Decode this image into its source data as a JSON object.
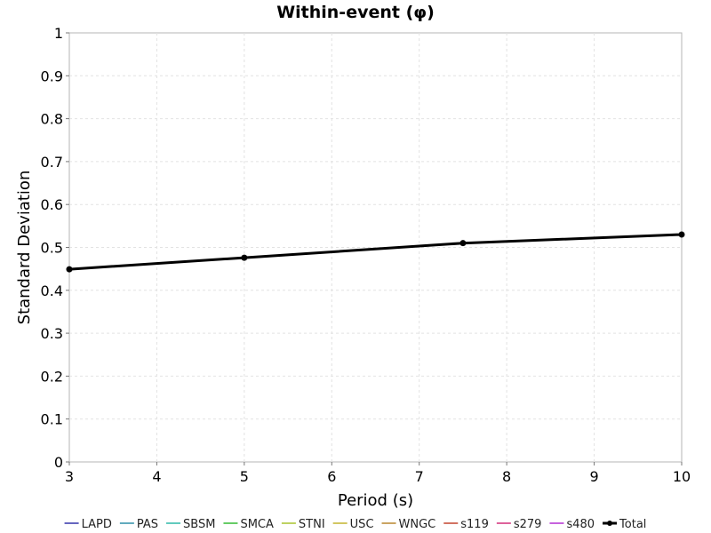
{
  "chart_data": {
    "type": "line",
    "title": "Within-event (φ)",
    "xlabel": "Period (s)",
    "ylabel": "Standard Deviation",
    "xlim": [
      3,
      10
    ],
    "ylim": [
      0,
      1
    ],
    "xticks": [
      3,
      4,
      5,
      6,
      7,
      8,
      9,
      10
    ],
    "yticks": [
      0,
      0.1,
      0.2,
      0.3,
      0.4,
      0.5,
      0.6,
      0.7,
      0.8,
      0.9,
      1
    ],
    "grid": true,
    "legend_position": "bottom",
    "series": [
      {
        "name": "LAPD",
        "color": "#3333aa",
        "x": [],
        "y": []
      },
      {
        "name": "PAS",
        "color": "#2e8fa8",
        "x": [],
        "y": []
      },
      {
        "name": "SBSM",
        "color": "#2eb8a8",
        "x": [],
        "y": []
      },
      {
        "name": "SMCA",
        "color": "#33bb33",
        "x": [],
        "y": []
      },
      {
        "name": "STNI",
        "color": "#a8c42e",
        "x": [],
        "y": []
      },
      {
        "name": "USC",
        "color": "#c4b42e",
        "x": [],
        "y": []
      },
      {
        "name": "WNGC",
        "color": "#b8862e",
        "x": [],
        "y": []
      },
      {
        "name": "s119",
        "color": "#c4442e",
        "x": [],
        "y": []
      },
      {
        "name": "s279",
        "color": "#d42e7a",
        "x": [],
        "y": []
      },
      {
        "name": "s480",
        "color": "#b42ed4",
        "x": [],
        "y": []
      },
      {
        "name": "Total",
        "color": "#000000",
        "bold": true,
        "markers": true,
        "x": [
          3,
          5,
          7.5,
          10
        ],
        "y": [
          0.449,
          0.476,
          0.51,
          0.53
        ]
      }
    ]
  }
}
